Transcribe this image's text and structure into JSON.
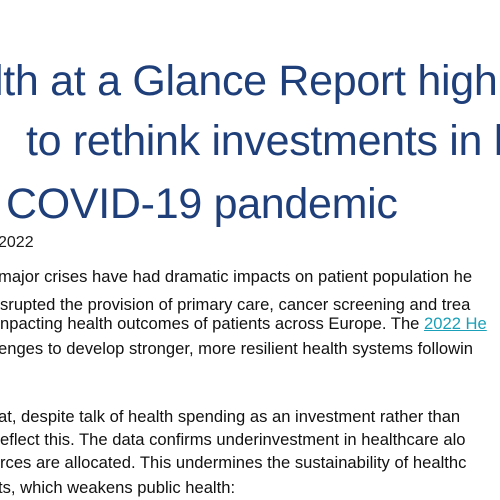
{
  "article": {
    "title_lines": [
      "lth at a Glance Report high",
      "to rethink investments in h",
      "COVID-19 pandemic"
    ],
    "date": "2022",
    "paragraph1": {
      "line1": " major crises have had dramatic impacts on patient population he",
      "line2": "srupted the provision of primary care, cancer screening and trea",
      "line3_before_link": "npacting health outcomes of patients across Europe. The ",
      "line3_link": "2022 He",
      "line4": "enges to develop stronger, more resilient health systems followin"
    },
    "paragraph2": {
      "line1": "at, despite talk of health spending as an investment rather than",
      "line2": "eflect this. The data confirms underinvestment in healthcare alo",
      "line3": "rces are allocated. This undermines the sustainability of healthc",
      "line4": "ts, which weakens public health:"
    }
  },
  "colors": {
    "title": "#1f3f7a",
    "body_text": "#111111",
    "link": "#1aa0b8",
    "background": "#ffffff"
  }
}
